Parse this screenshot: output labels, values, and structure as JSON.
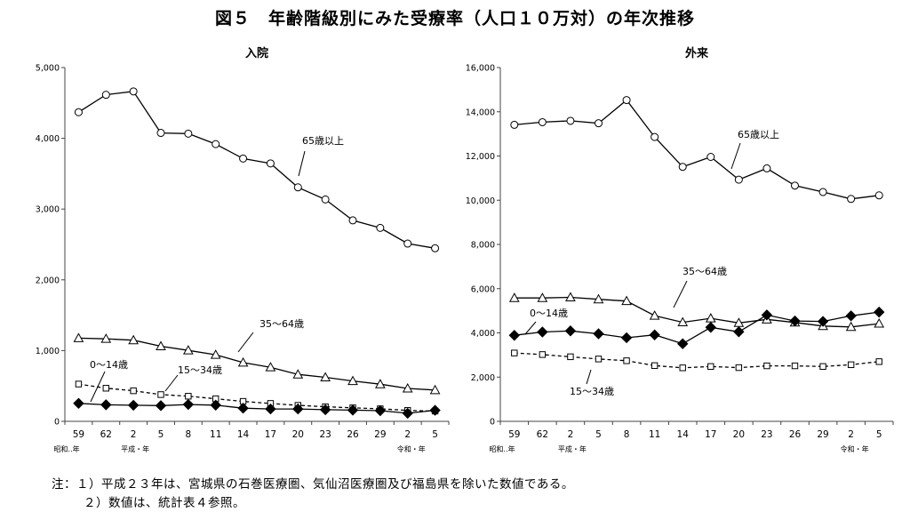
{
  "title": "図５　年齢階級別にみた受療率（人口１０万対）の年次推移",
  "colors": {
    "line": "#000000",
    "axis": "#444444",
    "background": "#ffffff"
  },
  "x_categories": [
    "59",
    "62",
    "2",
    "5",
    "8",
    "11",
    "14",
    "17",
    "20",
    "23",
    "26",
    "29",
    "2",
    "5"
  ],
  "era_labels": {
    "showa": "昭和‥年",
    "heisei": "平成・年",
    "reiwa": "令和・年"
  },
  "chart_data": [
    {
      "type": "line",
      "title": "入院",
      "ylim": [
        0,
        5000
      ],
      "yticks": [
        0,
        1000,
        2000,
        3000,
        4000,
        5000
      ],
      "ytick_labels": [
        "0",
        "1,000",
        "2,000",
        "3,000",
        "4,000",
        "5,000"
      ],
      "categories": [
        "59",
        "62",
        "2",
        "5",
        "8",
        "11",
        "14",
        "17",
        "20",
        "23",
        "26",
        "29",
        "2",
        "5"
      ],
      "series": [
        {
          "name": "65歳以上",
          "marker": "circle",
          "dashed": false,
          "values": [
            4369,
            4615,
            4663,
            4076,
            4066,
            3918,
            3714,
            3645,
            3307,
            3136,
            2840,
            2734,
            2512,
            2446
          ]
        },
        {
          "name": "35～64歳",
          "marker": "triangle",
          "dashed": false,
          "values": [
            1176,
            1166,
            1147,
            1062,
            1003,
            941,
            830,
            764,
            663,
            622,
            570,
            525,
            465,
            442
          ]
        },
        {
          "name": "15～34歳",
          "marker": "square",
          "dashed": true,
          "values": [
            527,
            468,
            432,
            378,
            355,
            319,
            282,
            253,
            226,
            206,
            191,
            177,
            155,
            145
          ]
        },
        {
          "name": "0～14歳",
          "marker": "diamond",
          "dashed": false,
          "values": [
            254,
            234,
            227,
            222,
            238,
            229,
            186,
            175,
            175,
            164,
            158,
            151,
            114,
            156
          ]
        }
      ],
      "labels": [
        {
          "text": "65歳以上"
        },
        {
          "text": "35～64歳"
        },
        {
          "text": "15～34歳"
        },
        {
          "text": "0～14歳"
        }
      ]
    },
    {
      "type": "line",
      "title": "外来",
      "ylim": [
        0,
        16000
      ],
      "yticks": [
        0,
        2000,
        4000,
        6000,
        8000,
        10000,
        12000,
        14000,
        16000
      ],
      "ytick_labels": [
        "0",
        "2,000",
        "4,000",
        "6,000",
        "8,000",
        "10,000",
        "12,000",
        "14,000",
        "16,000"
      ],
      "categories": [
        "59",
        "62",
        "2",
        "5",
        "8",
        "11",
        "14",
        "17",
        "20",
        "23",
        "26",
        "29",
        "2",
        "5"
      ],
      "series": [
        {
          "name": "65歳以上",
          "marker": "circle",
          "dashed": false,
          "values": [
            13410,
            13530,
            13590,
            13480,
            14530,
            12860,
            11510,
            11960,
            10930,
            11440,
            10660,
            10370,
            10060,
            10220
          ]
        },
        {
          "name": "35～64歳",
          "marker": "triangle",
          "dashed": false,
          "values": [
            5580,
            5580,
            5610,
            5520,
            5440,
            4780,
            4480,
            4660,
            4450,
            4610,
            4470,
            4310,
            4270,
            4420
          ]
        },
        {
          "name": "0～14歳",
          "marker": "diamond",
          "dashed": false,
          "values": [
            3890,
            4040,
            4090,
            3960,
            3780,
            3910,
            3510,
            4250,
            4050,
            4810,
            4540,
            4520,
            4770,
            4940
          ]
        },
        {
          "name": "15～34歳",
          "marker": "square",
          "dashed": true,
          "values": [
            3090,
            3020,
            2920,
            2820,
            2740,
            2520,
            2420,
            2480,
            2430,
            2510,
            2510,
            2480,
            2560,
            2700
          ]
        }
      ],
      "labels": [
        {
          "text": "65歳以上"
        },
        {
          "text": "35～64歳"
        },
        {
          "text": "0～14歳"
        },
        {
          "text": "15～34歳"
        }
      ]
    }
  ],
  "notes": [
    {
      "index": "注：１）",
      "text": "平成２３年は、宮城県の石巻医療圏、気仙沼医療圏及び福島県を除いた数値である。"
    },
    {
      "index": "２）",
      "text": "数値は、統計表４参照。"
    }
  ]
}
